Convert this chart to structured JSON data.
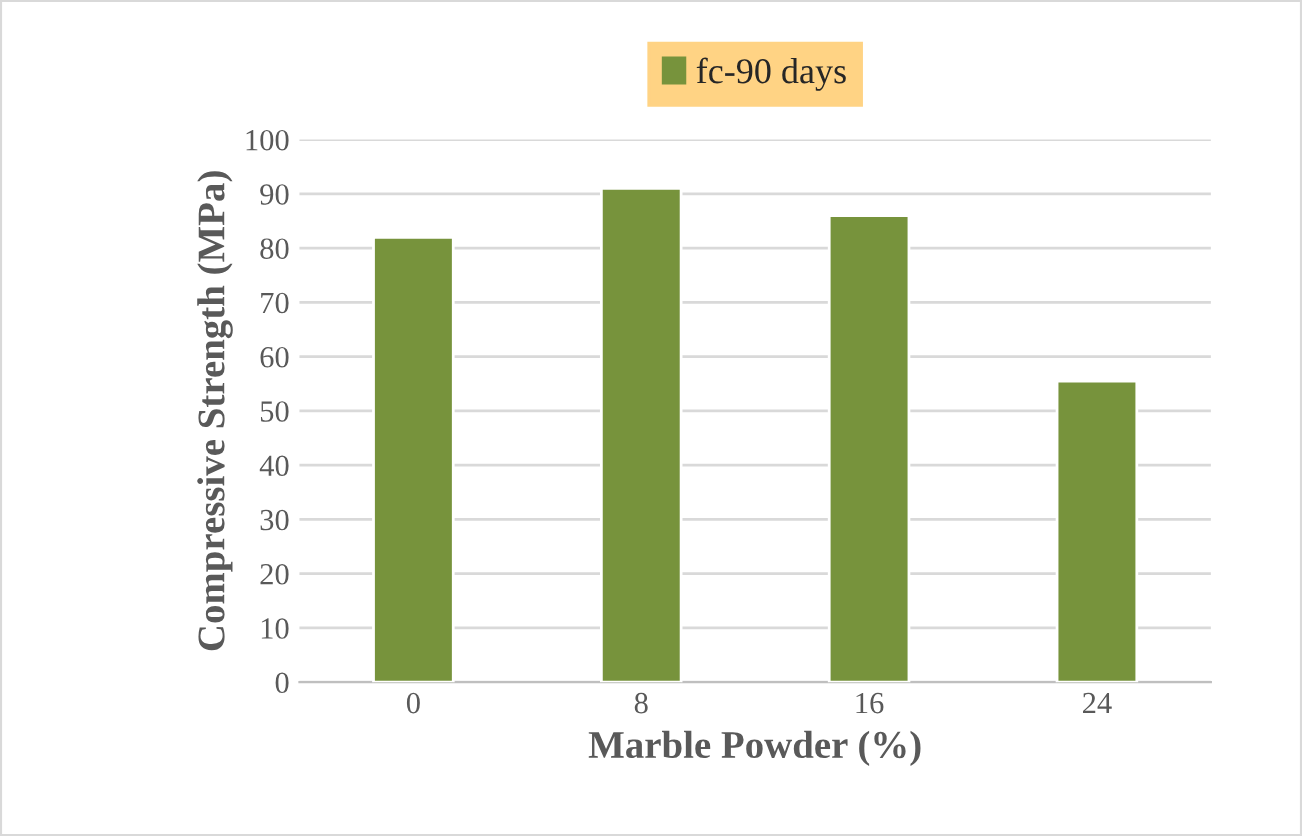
{
  "chart_data": {
    "type": "bar",
    "xlabel": "Marble Powder (%)",
    "ylabel": "Compressive Strength (MPa)",
    "categories": [
      "0",
      "8",
      "16",
      "24"
    ],
    "series": [
      {
        "name": "fc-90 days",
        "color": "#77933c",
        "values": [
          82,
          91,
          86,
          55.5
        ]
      }
    ],
    "ylim": [
      0,
      100
    ],
    "yticks": [
      0,
      10,
      20,
      30,
      40,
      50,
      60,
      70,
      80,
      90,
      100
    ],
    "grid": "y",
    "legend": "top"
  }
}
